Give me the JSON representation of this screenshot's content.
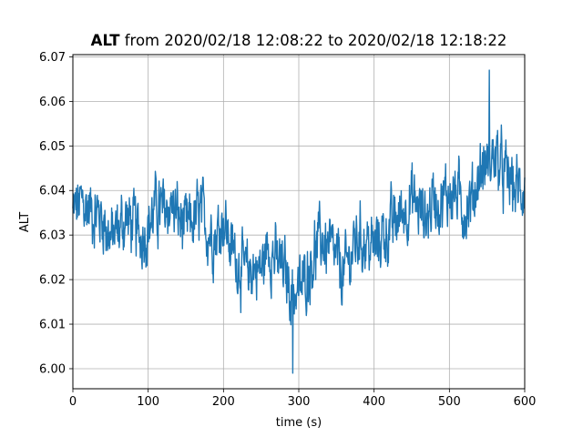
{
  "chart_data": {
    "type": "line",
    "title": {
      "bold": "ALT",
      "rest": " from 2020/02/18 12:08:22 to 2020/02/18 12:18:22"
    },
    "xlabel": "time (s)",
    "ylabel": "ALT",
    "xlim": [
      0,
      600
    ],
    "ylim": [
      5.9955,
      6.0705
    ],
    "xticks": [
      0,
      100,
      200,
      300,
      400,
      500,
      600
    ],
    "yticks": [
      6.0,
      6.01,
      6.02,
      6.03,
      6.04,
      6.05,
      6.06,
      6.07
    ],
    "ytick_labels": [
      "6.00",
      "6.01",
      "6.02",
      "6.03",
      "6.04",
      "6.05",
      "6.06",
      "6.07"
    ],
    "grid": true,
    "line_color": "#1f77b4",
    "sample_step_s": 0.5,
    "trend": {
      "x": [
        0,
        10,
        20,
        30,
        40,
        50,
        60,
        70,
        80,
        90,
        100,
        110,
        120,
        130,
        140,
        150,
        160,
        170,
        180,
        190,
        200,
        210,
        220,
        230,
        240,
        250,
        260,
        270,
        280,
        290,
        300,
        310,
        320,
        330,
        340,
        350,
        360,
        370,
        380,
        390,
        400,
        410,
        420,
        430,
        440,
        450,
        460,
        470,
        480,
        490,
        500,
        510,
        520,
        530,
        540,
        550,
        560,
        570,
        580,
        590,
        600
      ],
      "y": [
        6.035,
        6.037,
        6.036,
        6.035,
        6.034,
        6.029,
        6.031,
        6.034,
        6.032,
        6.03,
        6.032,
        6.036,
        6.035,
        6.037,
        6.034,
        6.031,
        6.033,
        6.035,
        6.031,
        6.03,
        6.034,
        6.027,
        6.024,
        6.021,
        6.023,
        6.022,
        6.028,
        6.024,
        6.022,
        6.018,
        6.017,
        6.021,
        6.026,
        6.029,
        6.027,
        6.024,
        6.021,
        6.026,
        6.03,
        6.028,
        6.027,
        6.03,
        6.031,
        6.033,
        6.036,
        6.038,
        6.036,
        6.034,
        6.039,
        6.037,
        6.04,
        6.039,
        6.036,
        6.038,
        6.044,
        6.046,
        6.048,
        6.044,
        6.042,
        6.04,
        6.041
      ]
    },
    "noise_amplitude": 0.006,
    "extremes": {
      "max": {
        "x": 553,
        "y": 6.067
      },
      "min": {
        "x": 292,
        "y": 5.999
      }
    }
  }
}
